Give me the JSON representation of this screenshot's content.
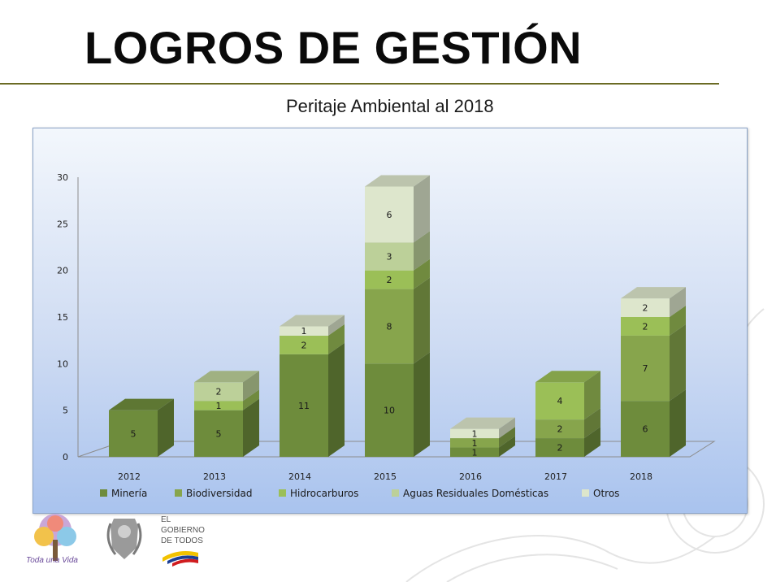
{
  "slide": {
    "title": "LOGROS DE GESTIÓN",
    "subtitle": "Peritaje Ambiental al 2018"
  },
  "logos": {
    "toda_una_vida": "Toda una Vida",
    "gobierno_line1": "EL",
    "gobierno_line2": "GOBIERNO",
    "gobierno_line3": "DE TODOS"
  },
  "colors": {
    "mineria": "#6e8c3c",
    "biodiversidad": "#87a54c",
    "hidrocarburos": "#9bbf57",
    "aguas": "#bcd099",
    "otros": "#dde6cc",
    "title_rule": "#6b6b24"
  },
  "chart_data": {
    "type": "bar",
    "stacked": true,
    "three_d": true,
    "categories": [
      "2012",
      "2013",
      "2014",
      "2015",
      "2016",
      "2017",
      "2018"
    ],
    "series": [
      {
        "name": "Minería",
        "values": [
          5,
          5,
          11,
          10,
          1,
          2,
          6
        ]
      },
      {
        "name": "Biodiversidad",
        "values": [
          0,
          0,
          0,
          8,
          1,
          2,
          7
        ]
      },
      {
        "name": "Hidrocarburos",
        "values": [
          0,
          1,
          2,
          2,
          0,
          4,
          2
        ]
      },
      {
        "name": "Aguas Residuales Domésticas",
        "values": [
          0,
          2,
          0,
          3,
          0,
          0,
          0
        ]
      },
      {
        "name": "Otros",
        "values": [
          0,
          0,
          1,
          6,
          1,
          0,
          2
        ]
      }
    ],
    "ylim": [
      0,
      30
    ],
    "yticks": [
      "0",
      "5",
      "10",
      "15",
      "20",
      "25",
      "30"
    ],
    "legend": "bottom",
    "grid": false
  }
}
